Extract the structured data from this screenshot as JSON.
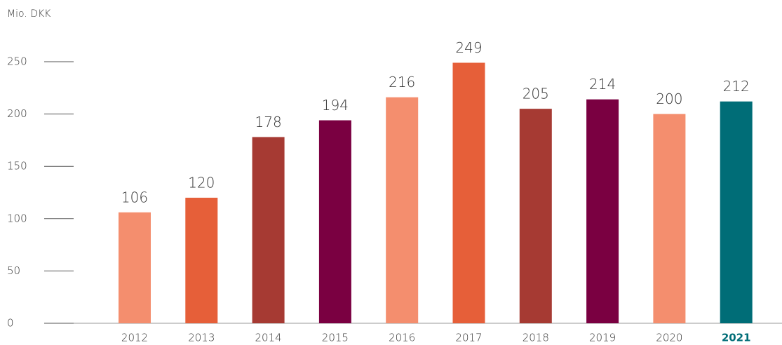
{
  "chart_data": {
    "type": "bar",
    "y_unit_label": "Mio. DKK",
    "categories": [
      "2012",
      "2013",
      "2014",
      "2015",
      "2016",
      "2017",
      "2018",
      "2019",
      "2020",
      "2021"
    ],
    "values": [
      106,
      120,
      178,
      194,
      216,
      249,
      205,
      214,
      200,
      212
    ],
    "colors": [
      "#f48e6e",
      "#e65f39",
      "#a63a33",
      "#7a0041",
      "#f48e6e",
      "#e65f39",
      "#a63a33",
      "#7a0041",
      "#f48e6e",
      "#006d77"
    ],
    "ylim": [
      0,
      250
    ],
    "yticks": [
      0,
      50,
      100,
      150,
      200,
      250
    ]
  }
}
